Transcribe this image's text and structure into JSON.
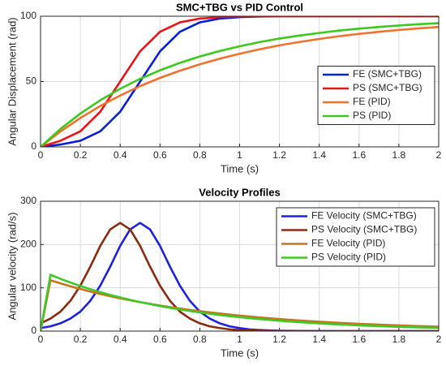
{
  "chart_data": [
    {
      "type": "line",
      "title": "SMC+TBG vs PID Control",
      "xlabel": "Time (s)",
      "ylabel": "Angular Displacement (rad)",
      "x": [
        0,
        0.1,
        0.2,
        0.3,
        0.4,
        0.5,
        0.6,
        0.7,
        0.8,
        0.9,
        1,
        1.1,
        1.2,
        1.3,
        1.4,
        1.5,
        1.6,
        1.7,
        1.8,
        1.9,
        2
      ],
      "series": [
        {
          "name": "FE (SMC+TBG)",
          "color": "#0a1fd6",
          "values": [
            0,
            1.8,
            4.7,
            11.9,
            26.9,
            50,
            73.1,
            88.1,
            95.3,
            98.2,
            99.3,
            99.8,
            100,
            100,
            100,
            100,
            100,
            100,
            100,
            100,
            100
          ]
        },
        {
          "name": "PS (SMC+TBG)",
          "color": "#e8141a",
          "values": [
            0,
            4.7,
            11.9,
            26.9,
            50,
            73.1,
            88.1,
            95.3,
            98.2,
            99.3,
            99.8,
            100,
            100,
            100,
            100,
            100,
            100,
            100,
            100,
            100,
            100
          ]
        },
        {
          "name": "FE (PID)",
          "color": "#f0722c",
          "values": [
            0,
            11.8,
            22.1,
            31.3,
            39.3,
            46.5,
            52.8,
            58.3,
            63.2,
            67.5,
            71.3,
            74.7,
            77.7,
            80.3,
            82.6,
            84.7,
            86.5,
            88.1,
            89.5,
            90.7,
            91.8
          ]
        },
        {
          "name": "PS (PID)",
          "color": "#3ec81e",
          "values": [
            0,
            13.7,
            25.5,
            35.7,
            44.5,
            52.1,
            58.6,
            64.3,
            69.2,
            73.4,
            77,
            80.2,
            82.9,
            85.2,
            87.2,
            89,
            90.5,
            91.8,
            92.9,
            93.9,
            94.7
          ]
        }
      ],
      "xlim": [
        0,
        2
      ],
      "xticks": [
        0,
        0.2,
        0.4,
        0.6,
        0.8,
        1,
        1.2,
        1.4,
        1.6,
        1.8,
        2
      ],
      "ylim": [
        0,
        100
      ],
      "yticks": [
        0,
        50,
        100
      ],
      "grid": true,
      "legend": "center right"
    },
    {
      "type": "line",
      "title": "Velocity Profiles",
      "xlabel": "Time (s)",
      "ylabel": "Angular velocity (rad/s)",
      "x": [
        0,
        0.05,
        0.1,
        0.15,
        0.2,
        0.25,
        0.3,
        0.35,
        0.4,
        0.45,
        0.5,
        0.55,
        0.6,
        0.65,
        0.7,
        0.75,
        0.8,
        0.85,
        0.9,
        0.95,
        1,
        1.05,
        1.1,
        1.15,
        1.2,
        1.25,
        1.3,
        1.35,
        1.4,
        1.45,
        1.5,
        1.55,
        1.6,
        1.65,
        1.7,
        1.75,
        1.8,
        1.85,
        1.9,
        1.95,
        2
      ],
      "series": [
        {
          "name": "FE Velocity (SMC+TBG)",
          "color": "#1e22d8",
          "values": [
            7,
            11,
            18,
            29,
            45,
            70,
            105,
            149,
            197,
            235,
            250,
            235,
            197,
            149,
            105,
            70,
            45,
            29,
            18,
            11,
            7,
            4,
            2.5,
            1.5,
            0.9,
            0.5,
            0.3,
            0.2,
            0.1,
            0,
            0,
            0,
            0,
            0,
            0,
            0,
            0,
            0,
            0,
            0,
            0
          ]
        },
        {
          "name": "PS Velocity (SMC+TBG)",
          "color": "#8b2a10",
          "values": [
            18,
            29,
            45,
            70,
            105,
            149,
            197,
            235,
            250,
            235,
            197,
            149,
            105,
            70,
            45,
            29,
            18,
            11,
            7,
            4,
            2.5,
            1.5,
            0.9,
            0.5,
            0.3,
            0.2,
            0.1,
            0,
            0,
            0,
            0,
            0,
            0,
            0,
            0,
            0,
            0,
            0,
            0,
            0,
            0
          ]
        },
        {
          "name": "FE Velocity (PID)",
          "color": "#c8741e",
          "values": [
            0,
            117.4,
            110.3,
            103.6,
            97.4,
            91.5,
            85.9,
            80.7,
            75.8,
            71.2,
            66.9,
            62.9,
            59,
            55.5,
            52.1,
            49,
            46,
            43.2,
            40.6,
            38.1,
            35.8,
            33.7,
            31.6,
            29.7,
            27.9,
            26.2,
            24.6,
            23.1,
            21.7,
            20.4,
            19.2,
            18,
            16.9,
            15.9,
            14.9,
            14,
            13.2,
            12.4,
            11.6,
            10.9,
            10.3
          ]
        },
        {
          "name": "PS Velocity (PID)",
          "color": "#40c828",
          "values": [
            0,
            130.1,
            120.8,
            112.3,
            104.3,
            96.9,
            90,
            83.6,
            77.7,
            72.2,
            67.1,
            62.3,
            57.9,
            53.8,
            50,
            46.4,
            43.1,
            40.1,
            37.2,
            34.6,
            32.1,
            29.9,
            27.7,
            25.8,
            23.9,
            22.2,
            20.7,
            19.2,
            17.8,
            16.6,
            15.4,
            14.3,
            13.3,
            12.4,
            11.5,
            10.7,
            9.9,
            9.2,
            8.6,
            8,
            7.4
          ]
        }
      ],
      "xlim": [
        0,
        2
      ],
      "xticks": [
        0,
        0.2,
        0.4,
        0.6,
        0.8,
        1,
        1.2,
        1.4,
        1.6,
        1.8,
        2
      ],
      "ylim": [
        0,
        300
      ],
      "yticks": [
        0,
        100,
        200,
        300
      ],
      "grid": true,
      "legend": "upper right"
    }
  ]
}
